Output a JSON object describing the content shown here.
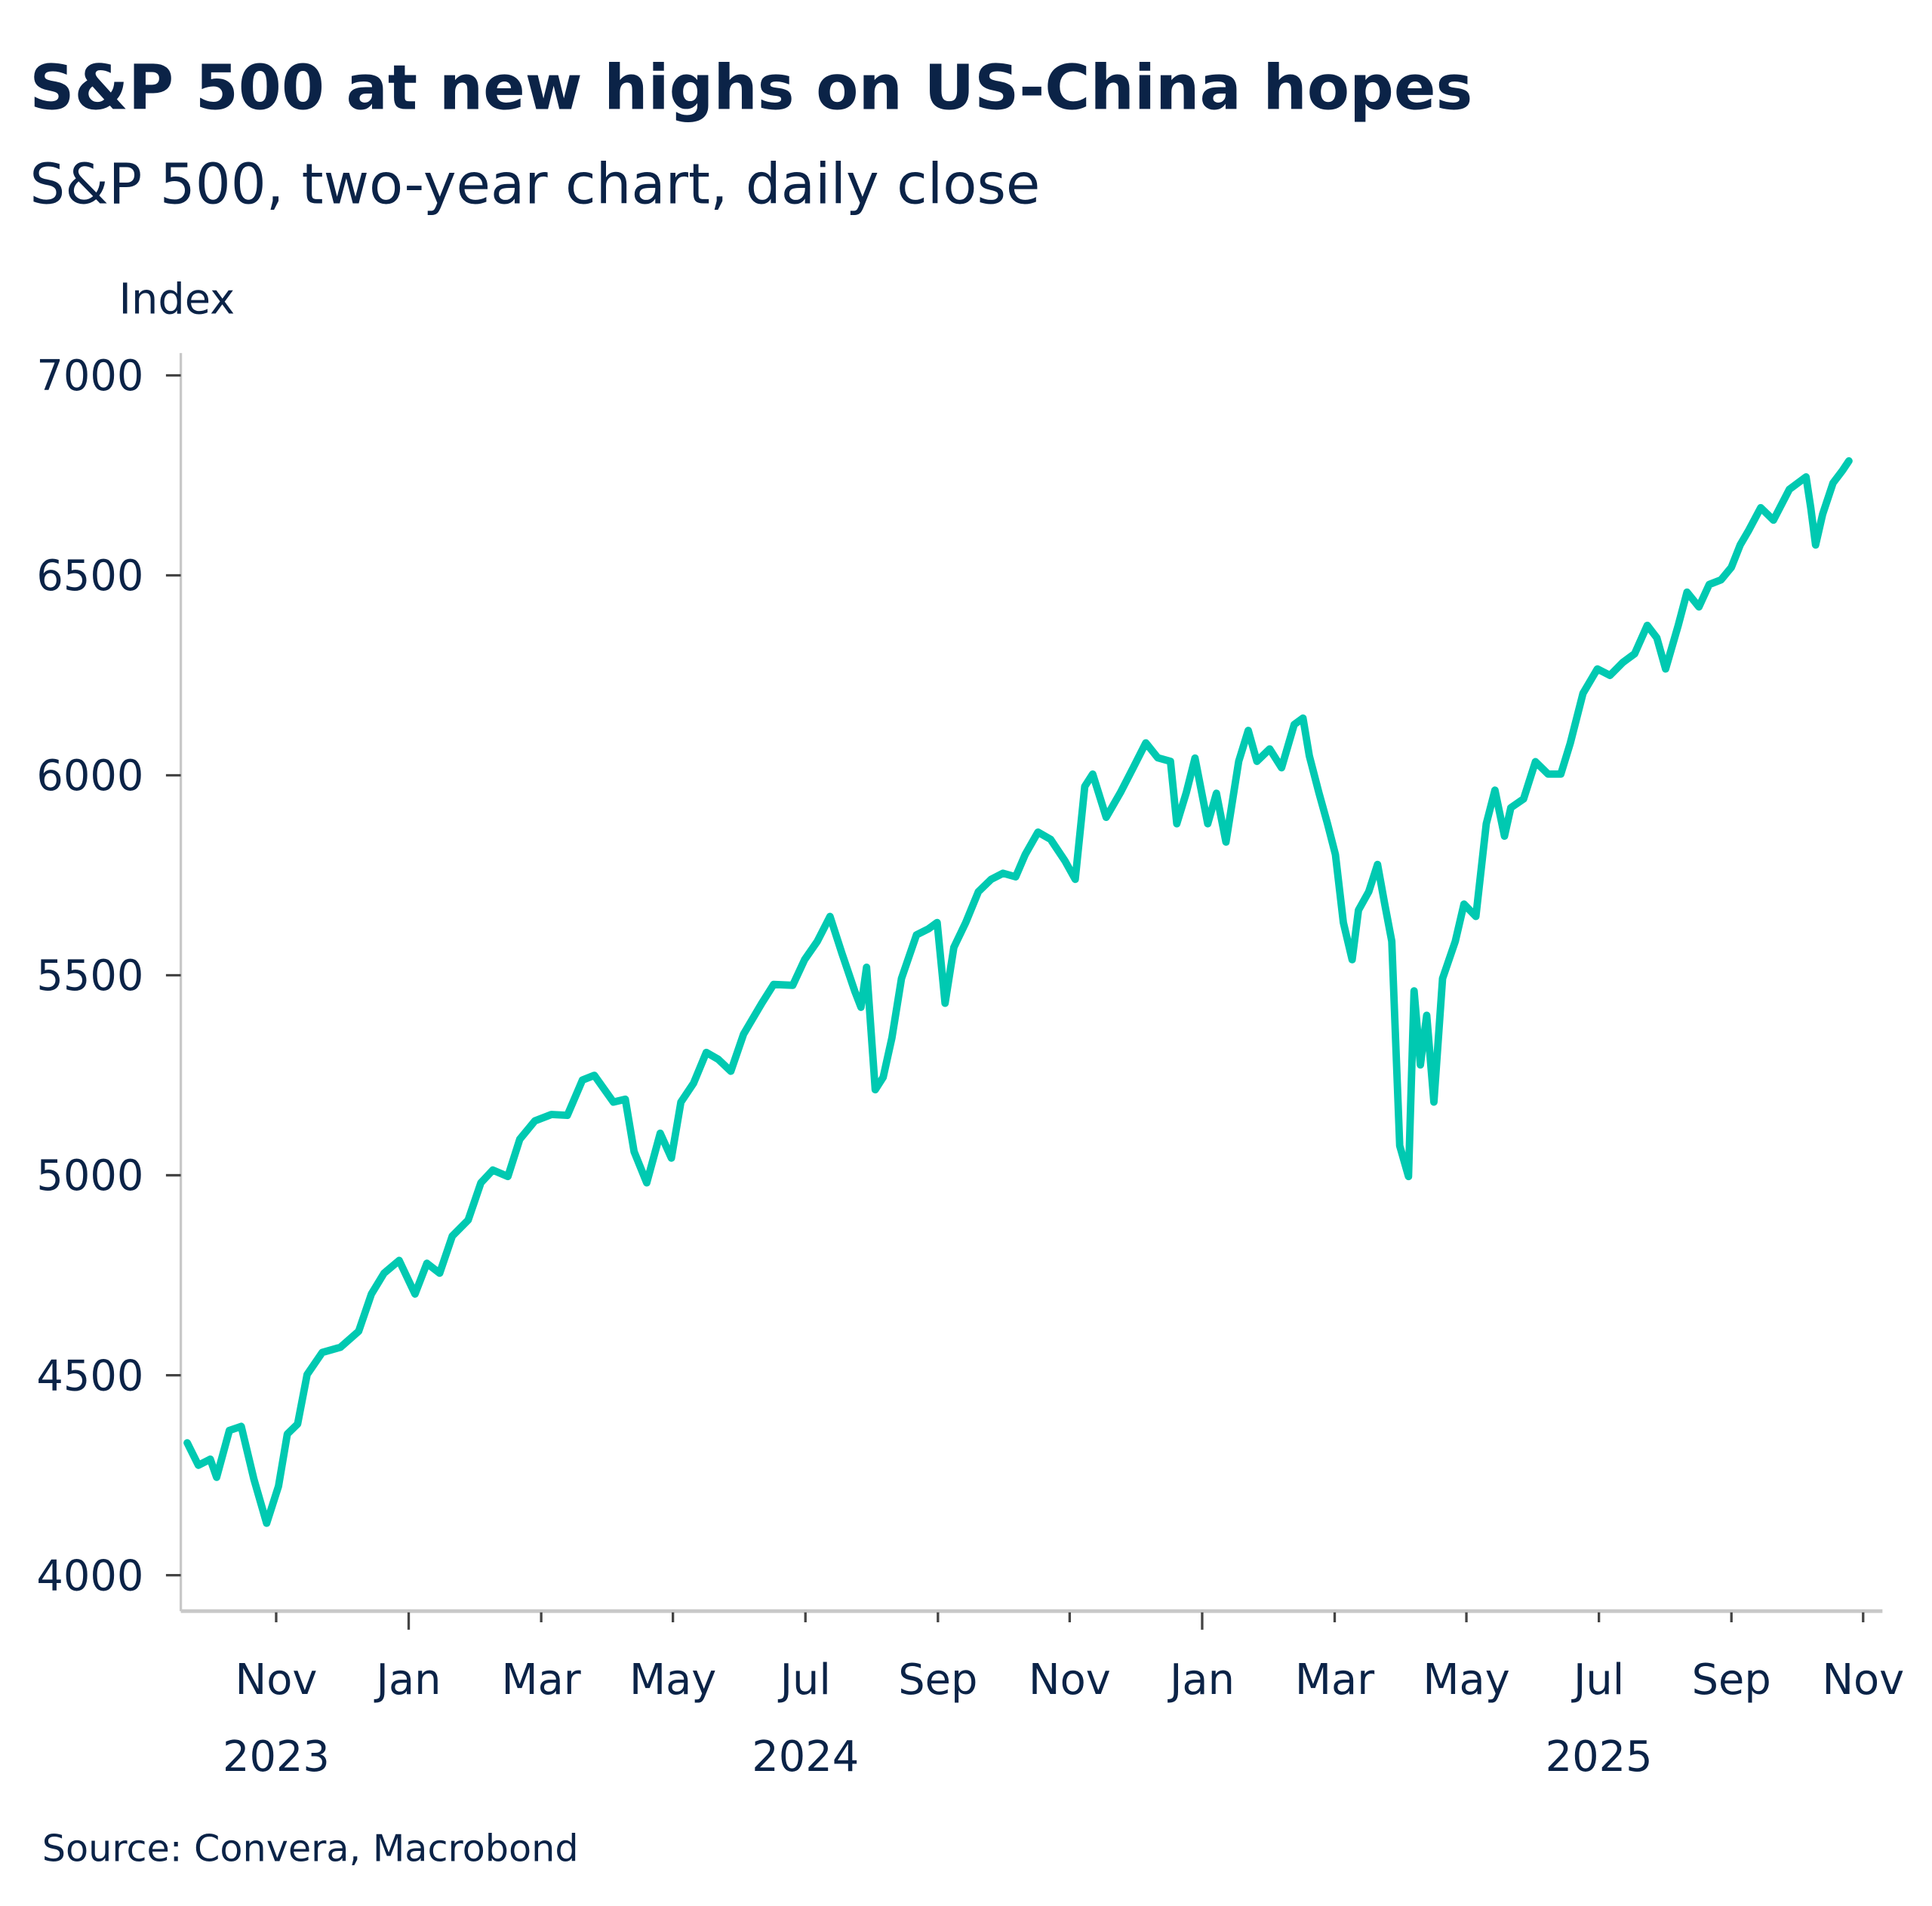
{
  "chart_data": {
    "type": "line",
    "title": "S&P 500 at new highs on US-China hopes",
    "subtitle": "S&P 500, two-year chart, daily close",
    "ylabel": "Index",
    "xlabel": "",
    "ylim": [
      4000,
      7000
    ],
    "yticks": [
      "7000",
      "6500",
      "6000",
      "5500",
      "5000",
      "4500",
      "4000"
    ],
    "ytick_values": [
      7000,
      6500,
      6000,
      5500,
      5000,
      4500,
      4000
    ],
    "xlim": [
      2023.7,
      2025.89
    ],
    "xticks": [
      {
        "t": 2023.833,
        "label": "Nov",
        "major": false
      },
      {
        "t": 2024.0,
        "label": "Jan",
        "major": true
      },
      {
        "t": 2024.167,
        "label": "Mar",
        "major": false
      },
      {
        "t": 2024.333,
        "label": "May",
        "major": false
      },
      {
        "t": 2024.5,
        "label": "Jul",
        "major": false
      },
      {
        "t": 2024.667,
        "label": "Sep",
        "major": false
      },
      {
        "t": 2024.833,
        "label": "Nov",
        "major": false
      },
      {
        "t": 2025.0,
        "label": "Jan",
        "major": true
      },
      {
        "t": 2025.167,
        "label": "Mar",
        "major": false
      },
      {
        "t": 2025.333,
        "label": "May",
        "major": false
      },
      {
        "t": 2025.5,
        "label": "Jul",
        "major": false
      },
      {
        "t": 2025.667,
        "label": "Sep",
        "major": false
      },
      {
        "t": 2025.833,
        "label": "Nov",
        "major": false
      }
    ],
    "year_labels": [
      {
        "t": 2023.833,
        "label": "2023"
      },
      {
        "t": 2024.5,
        "label": "2024"
      },
      {
        "t": 2025.5,
        "label": "2025"
      }
    ],
    "grid": false,
    "source": "Source: Convera, Macrobond",
    "series": [
      {
        "name": "S&P 500",
        "color": "#00c9b1",
        "x": [
          2023.721,
          2023.735,
          2023.75,
          2023.758,
          2023.774,
          2023.789,
          2023.805,
          2023.821,
          2023.836,
          2023.847,
          2023.86,
          2023.872,
          2023.891,
          2023.914,
          2023.937,
          2023.953,
          2023.969,
          2023.988,
          2024.008,
          2024.023,
          2024.039,
          2024.055,
          2024.075,
          2024.091,
          2024.106,
          2024.125,
          2024.14,
          2024.159,
          2024.18,
          2024.2,
          2024.219,
          2024.234,
          2024.258,
          2024.273,
          2024.284,
          2024.3,
          2024.317,
          2024.331,
          2024.343,
          2024.359,
          2024.375,
          2024.39,
          2024.406,
          2024.422,
          2024.445,
          2024.46,
          2024.484,
          2024.499,
          2024.515,
          2024.531,
          2024.546,
          2024.562,
          2024.57,
          2024.577,
          2024.588,
          2024.598,
          2024.609,
          2024.621,
          2024.64,
          2024.655,
          2024.666,
          2024.676,
          2024.687,
          2024.702,
          2024.718,
          2024.734,
          2024.749,
          2024.765,
          2024.777,
          2024.793,
          2024.809,
          2024.827,
          2024.84,
          2024.852,
          2024.862,
          2024.879,
          2024.897,
          2024.913,
          2024.929,
          2024.944,
          2024.96,
          2024.968,
          2024.98,
          2024.991,
          2025.007,
          2025.018,
          2025.03,
          2025.046,
          2025.058,
          2025.069,
          2025.085,
          2025.1,
          2025.116,
          2025.127,
          2025.135,
          2025.147,
          2025.158,
          2025.168,
          2025.178,
          2025.189,
          2025.197,
          2025.21,
          2025.221,
          2025.23,
          2025.239,
          2025.249,
          2025.26,
          2025.267,
          2025.275,
          2025.283,
          2025.292,
          2025.303,
          2025.319,
          2025.33,
          2025.345,
          2025.358,
          2025.369,
          2025.381,
          2025.389,
          2025.405,
          2025.42,
          2025.436,
          2025.452,
          2025.464,
          2025.48,
          2025.498,
          2025.514,
          2025.53,
          2025.545,
          2025.561,
          2025.573,
          2025.584,
          2025.6,
          2025.611,
          2025.626,
          2025.639,
          2025.654,
          2025.667,
          2025.678,
          2025.689,
          2025.704,
          2025.72,
          2025.74,
          2025.761,
          2025.767,
          2025.773,
          2025.782,
          2025.795,
          2025.807,
          2025.815
        ],
        "values": [
          4331,
          4275,
          4290,
          4245,
          4362,
          4372,
          4239,
          4130,
          4223,
          4353,
          4378,
          4502,
          4557,
          4570,
          4610,
          4703,
          4755,
          4787,
          4703,
          4780,
          4755,
          4848,
          4888,
          4981,
          5013,
          4997,
          5090,
          5136,
          5152,
          5150,
          5238,
          5250,
          5183,
          5190,
          5059,
          4981,
          5105,
          5043,
          5183,
          5230,
          5307,
          5290,
          5260,
          5353,
          5430,
          5477,
          5475,
          5539,
          5585,
          5647,
          5555,
          5461,
          5420,
          5520,
          5214,
          5245,
          5344,
          5492,
          5601,
          5616,
          5632,
          5430,
          5570,
          5632,
          5709,
          5740,
          5755,
          5746,
          5802,
          5858,
          5840,
          5786,
          5740,
          5972,
          6003,
          5895,
          5957,
          6019,
          6081,
          6044,
          6035,
          5879,
          5957,
          6043,
          5879,
          5955,
          5833,
          6035,
          6112,
          6035,
          6066,
          6019,
          6127,
          6143,
          6049,
          5957,
          5879,
          5802,
          5632,
          5539,
          5663,
          5709,
          5777,
          5678,
          5585,
          5074,
          4997,
          5461,
          5276,
          5400,
          5183,
          5492,
          5585,
          5678,
          5647,
          5879,
          5963,
          5848,
          5919,
          5941,
          6034,
          6003,
          6003,
          6081,
          6205,
          6266,
          6250,
          6282,
          6304,
          6375,
          6344,
          6266,
          6375,
          6458,
          6421,
          6477,
          6489,
          6520,
          6576,
          6613,
          6669,
          6638,
          6715,
          6746,
          6669,
          6576,
          6653,
          6731,
          6762,
          6786
        ]
      }
    ]
  }
}
